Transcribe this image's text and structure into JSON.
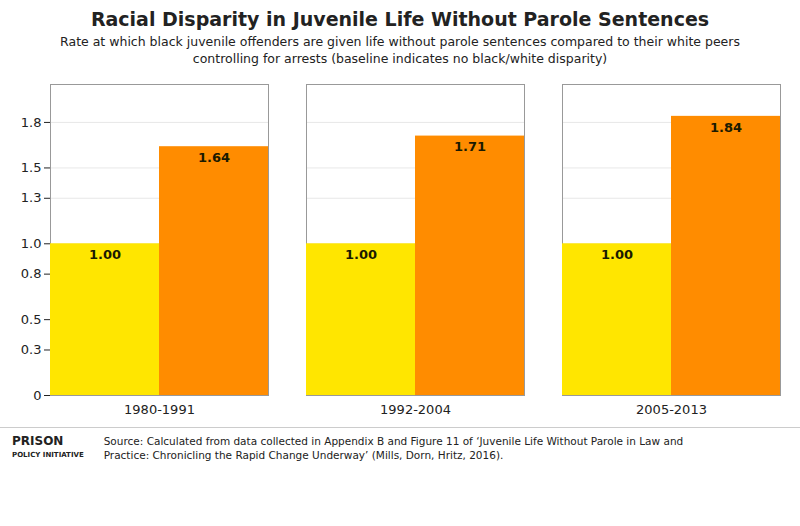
{
  "chart_data": {
    "type": "bar",
    "title": "Racial Disparity in Juvenile Life Without Parole Sentences",
    "subtitle": "Rate at which black juvenile offenders are given life without parole sentences compared to their white peers\ncontrolling for arrests (baseline indicates no black/white disparity)",
    "annotations": [
      "PRISON",
      "POLICY INITIATIVE",
      "Source: Calculated from data collected in Appendix B and Figure 11 of ‘Juvenile Life Without Parole in Law and\nPractice: Chronicling the Rapid Change Underway’ (Mills, Dorn, Hritz, 2016)."
    ],
    "categories": [
      "1980-1991",
      "1992-2004",
      "2005-2013"
    ],
    "series": [
      {
        "color": "#FFE600",
        "values": [
          1.0,
          1.0,
          1.0
        ],
        "value_labels": [
          "1.00",
          "1.00",
          "1.00"
        ]
      },
      {
        "color": "#FF8C00",
        "values": [
          1.64,
          1.71,
          1.84
        ],
        "value_labels": [
          "1.64",
          "1.71",
          "1.84"
        ]
      }
    ],
    "ylim": [
      0,
      2.05
    ],
    "yticks": [
      0,
      0.3,
      0.5,
      0.8,
      {
        "value": 1.0,
        "label": "1.0"
      },
      1.3,
      1.5,
      1.8
    ],
    "grid": true,
    "data_labels": true
  }
}
